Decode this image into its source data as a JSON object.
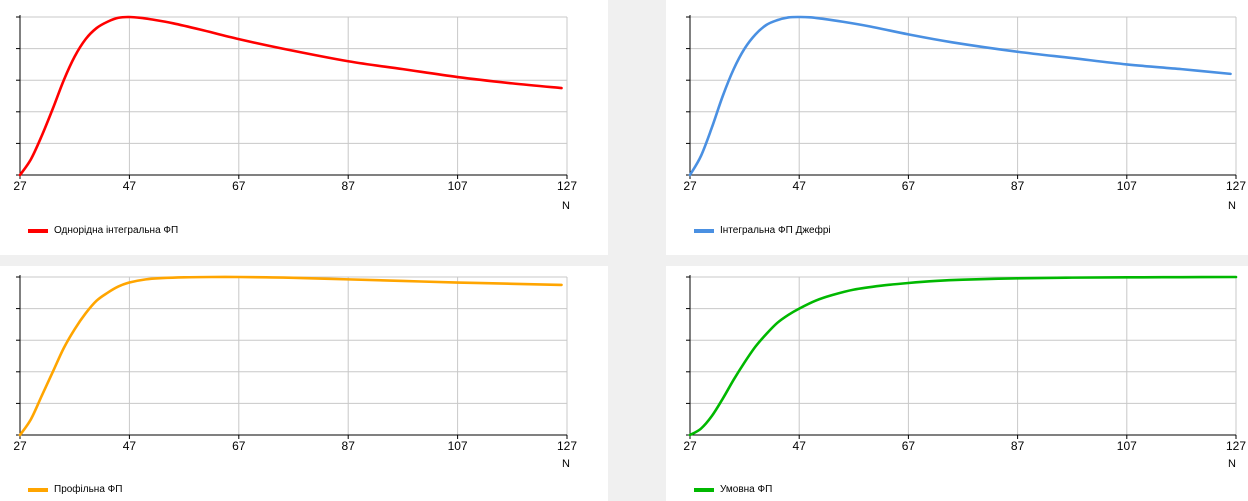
{
  "chart_data": [
    {
      "type": "line",
      "xlabel": "N",
      "xlim": [
        27,
        127
      ],
      "xticks": [
        "27",
        "47",
        "67",
        "87",
        "107",
        "127"
      ],
      "grid": true,
      "legend_position": "bottom-left",
      "series": [
        {
          "name": "Однорідна інтегральна ФП",
          "color": "#ff0000",
          "x": [
            27,
            29,
            31,
            33,
            35,
            37,
            39,
            41,
            43,
            45,
            47,
            49,
            51,
            55,
            60,
            67,
            75,
            87,
            97,
            107,
            117,
            126
          ],
          "y": [
            0.0,
            0.1,
            0.25,
            0.42,
            0.6,
            0.75,
            0.86,
            0.93,
            0.97,
            0.995,
            1.0,
            0.995,
            0.985,
            0.96,
            0.92,
            0.86,
            0.8,
            0.72,
            0.67,
            0.62,
            0.58,
            0.55
          ]
        }
      ]
    },
    {
      "type": "line",
      "xlabel": "N",
      "xlim": [
        27,
        127
      ],
      "xticks": [
        "27",
        "47",
        "67",
        "87",
        "107",
        "127"
      ],
      "grid": true,
      "legend_position": "bottom-left",
      "series": [
        {
          "name": "Інтегральна ФП Джефрі",
          "color": "#4a90e2",
          "x": [
            27,
            29,
            31,
            33,
            35,
            37,
            39,
            41,
            43,
            45,
            47,
            49,
            51,
            55,
            60,
            67,
            75,
            87,
            97,
            107,
            117,
            126
          ],
          "y": [
            0.0,
            0.12,
            0.3,
            0.5,
            0.67,
            0.8,
            0.89,
            0.95,
            0.98,
            0.997,
            1.0,
            0.998,
            0.99,
            0.97,
            0.94,
            0.89,
            0.84,
            0.78,
            0.74,
            0.7,
            0.67,
            0.64
          ]
        }
      ]
    },
    {
      "type": "line",
      "xlabel": "N",
      "xlim": [
        27,
        127
      ],
      "xticks": [
        "27",
        "47",
        "67",
        "87",
        "107",
        "127"
      ],
      "grid": true,
      "legend_position": "bottom-left",
      "series": [
        {
          "name": "Профільна ФП",
          "color": "#ffa500",
          "x": [
            27,
            29,
            31,
            33,
            35,
            37,
            39,
            41,
            43,
            45,
            47,
            50,
            53,
            57,
            62,
            67,
            72,
            77,
            87,
            97,
            107,
            117,
            126
          ],
          "y": [
            0.0,
            0.1,
            0.25,
            0.4,
            0.55,
            0.67,
            0.77,
            0.85,
            0.9,
            0.94,
            0.965,
            0.985,
            0.993,
            0.998,
            1.0,
            1.0,
            0.998,
            0.995,
            0.985,
            0.975,
            0.965,
            0.957,
            0.95
          ]
        }
      ]
    },
    {
      "type": "line",
      "xlabel": "N",
      "xlim": [
        27,
        127
      ],
      "xticks": [
        "27",
        "47",
        "67",
        "87",
        "107",
        "127"
      ],
      "grid": true,
      "legend_position": "bottom-left",
      "series": [
        {
          "name": "Умовна ФП",
          "color": "#00b800",
          "x": [
            27,
            29,
            31,
            33,
            35,
            37,
            39,
            41,
            43,
            45,
            47,
            50,
            53,
            57,
            62,
            67,
            72,
            77,
            87,
            97,
            107,
            117,
            127
          ],
          "y": [
            0.0,
            0.04,
            0.12,
            0.23,
            0.35,
            0.46,
            0.56,
            0.64,
            0.71,
            0.76,
            0.8,
            0.85,
            0.885,
            0.92,
            0.945,
            0.962,
            0.975,
            0.983,
            0.992,
            0.996,
            0.998,
            0.999,
            1.0
          ]
        }
      ]
    }
  ]
}
